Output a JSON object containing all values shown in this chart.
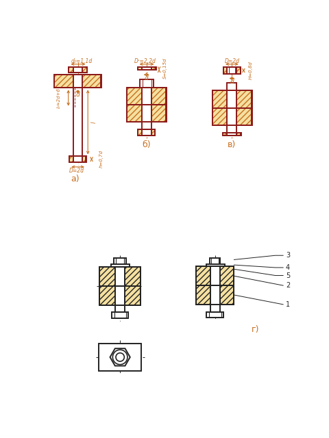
{
  "bg_color": "#FFFFFF",
  "line_color": "#8B1A1A",
  "hatch_color": "#C87020",
  "dim_color": "#C87020",
  "text_color": "#C87020",
  "black_color": "#222222",
  "label_a": "а)",
  "label_b": "б)",
  "label_v": "в)",
  "label_g": "г)",
  "dim_d0": "d₀=1,1d",
  "dim_d": "d",
  "dim_l0": "l₀≈2d+6",
  "dim_l": "l",
  "dim_D_nut": "D=2d",
  "dim_h_nut": "h=0,7d",
  "dim_Dw": "Dᴸ=2,2d",
  "dim_S": "S=0,15d",
  "dim_D_bolt": "D=2d",
  "dim_H": "H=0,8d"
}
